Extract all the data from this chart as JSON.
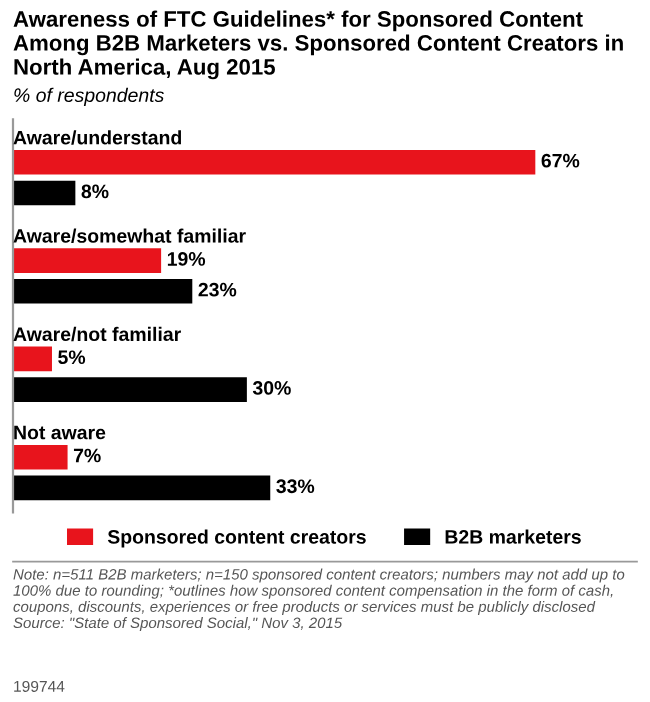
{
  "chart_data": {
    "type": "bar",
    "orientation": "horizontal",
    "title": "Awareness of FTC Guidelines* for Sponsored Content Among B2B Marketers vs. Sponsored Content Creators in North America, Aug 2015",
    "subtitle": "% of respondents",
    "categories": [
      "Aware/understand",
      "Aware/somewhat familiar",
      "Aware/not familiar",
      "Not aware"
    ],
    "series": [
      {
        "name": "Sponsored content creators",
        "color": "#e8141c",
        "values": [
          67,
          19,
          5,
          7
        ],
        "value_labels": [
          "67%",
          "19%",
          "5%",
          "7%"
        ]
      },
      {
        "name": "B2B marketers",
        "color": "#000000",
        "values": [
          8,
          23,
          30,
          33
        ],
        "value_labels": [
          "8%",
          "23%",
          "30%",
          "33%"
        ]
      }
    ],
    "legend": "bottom",
    "annotations": [
      "Note: n=511 B2B marketers; n=150 sponsored content creators; numbers may not add up to 100% due to rounding; *outlines how sponsored content compensation in the form of cash, coupons, discounts, experiences or free products or services must be publicly disclosed",
      "Source: \"State of Sponsored Social,\" Nov 3, 2015",
      "199744"
    ]
  }
}
